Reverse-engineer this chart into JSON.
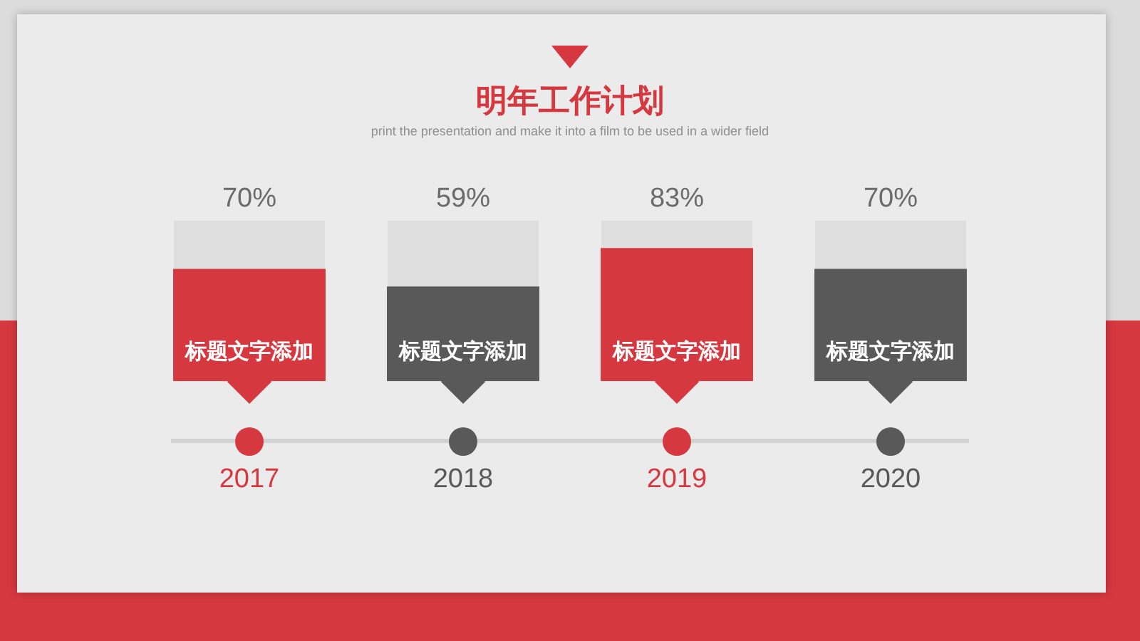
{
  "chart_data": {
    "type": "bar",
    "title": "明年工作计划",
    "subtitle": "print the presentation and make it into a film to be used in a wider field",
    "categories": [
      "2017",
      "2018",
      "2019",
      "2020"
    ],
    "values": [
      70,
      59,
      83,
      70
    ],
    "value_labels": [
      "70%",
      "59%",
      "83%",
      "70%"
    ],
    "colors": [
      "#d63840",
      "#595959",
      "#d63840",
      "#595959"
    ],
    "annotations": [
      "标题文字添加",
      "标题文字添加",
      "标题文字添加",
      "标题文字添加"
    ],
    "ylim": [
      0,
      100
    ],
    "tick_labels": "x",
    "grid": false,
    "legend": false
  }
}
